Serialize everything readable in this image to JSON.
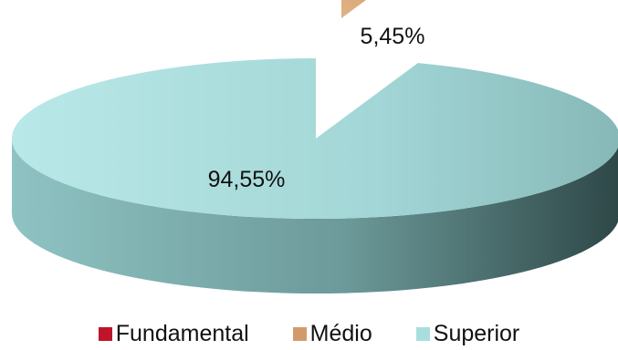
{
  "chart_data": {
    "type": "pie",
    "title": "",
    "categories": [
      "Fundamental",
      "Médio",
      "Superior"
    ],
    "values": [
      0,
      5.45,
      94.55
    ],
    "data_labels": [
      "",
      "5,45%",
      "94,55%"
    ],
    "colors": [
      "#c0142a",
      "#d29a6a",
      "#a8dede"
    ],
    "legend_position": "bottom",
    "exploded_slice": "Médio",
    "style": "3d"
  }
}
